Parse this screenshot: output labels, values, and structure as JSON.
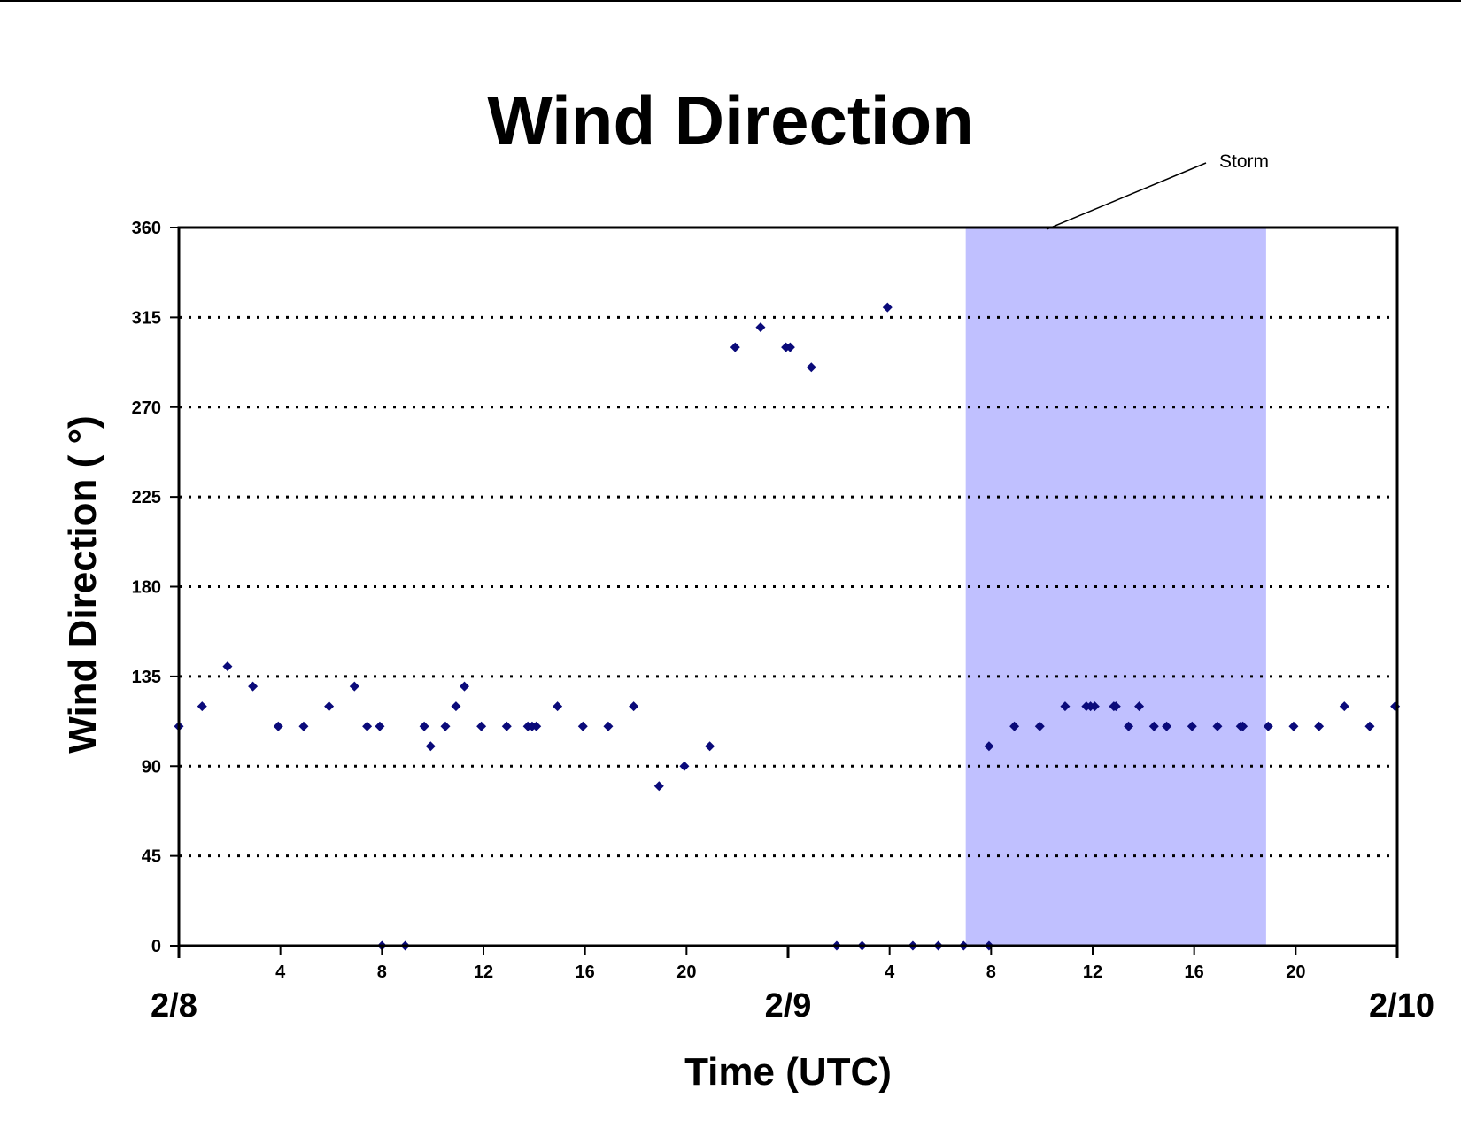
{
  "chart_data": {
    "type": "scatter",
    "title": "Wind Direction",
    "xlabel": "Time (UTC)",
    "ylabel": "Wind Direction ( °)",
    "ylim": [
      0,
      360
    ],
    "xlim": [
      "2/8 00:00",
      "2/10 00:00"
    ],
    "yticks": [
      0,
      45,
      90,
      135,
      180,
      225,
      270,
      315,
      360
    ],
    "xticks_hour": [
      {
        "h": 4,
        "label": "4"
      },
      {
        "h": 8,
        "label": "8"
      },
      {
        "h": 12,
        "label": "12"
      },
      {
        "h": 16,
        "label": "16"
      },
      {
        "h": 20,
        "label": "20"
      },
      {
        "h": 28,
        "label": "4"
      },
      {
        "h": 32,
        "label": "8"
      },
      {
        "h": 36,
        "label": "12"
      },
      {
        "h": 40,
        "label": "16"
      },
      {
        "h": 44,
        "label": "20"
      }
    ],
    "xticks_date": [
      {
        "h": 0,
        "label": "2/8"
      },
      {
        "h": 24,
        "label": "2/9"
      },
      {
        "h": 48,
        "label": "2/10"
      }
    ],
    "grid": "horizontal dotted",
    "marker_color": "#0a0a7a",
    "shade_color": "#c0c0ff",
    "shaded_region": {
      "label": "Storm",
      "from": "2/9 07:00",
      "to": "2/9 18:50"
    },
    "points": [
      {
        "x": "2/8 00:00",
        "y": 110
      },
      {
        "x": "2/8 00:55",
        "y": 120
      },
      {
        "x": "2/8 01:55",
        "y": 140
      },
      {
        "x": "2/8 02:55",
        "y": 130
      },
      {
        "x": "2/8 03:55",
        "y": 110
      },
      {
        "x": "2/8 04:55",
        "y": 110
      },
      {
        "x": "2/8 05:55",
        "y": 120
      },
      {
        "x": "2/8 06:55",
        "y": 130
      },
      {
        "x": "2/8 07:25",
        "y": 110
      },
      {
        "x": "2/8 07:55",
        "y": 110
      },
      {
        "x": "2/8 08:00",
        "y": 0
      },
      {
        "x": "2/8 08:55",
        "y": 0
      },
      {
        "x": "2/8 09:40",
        "y": 110
      },
      {
        "x": "2/8 09:55",
        "y": 100
      },
      {
        "x": "2/8 10:30",
        "y": 110
      },
      {
        "x": "2/8 10:55",
        "y": 120
      },
      {
        "x": "2/8 11:15",
        "y": 130
      },
      {
        "x": "2/8 11:55",
        "y": 110
      },
      {
        "x": "2/8 12:55",
        "y": 110
      },
      {
        "x": "2/8 13:45",
        "y": 110
      },
      {
        "x": "2/8 13:55",
        "y": 110
      },
      {
        "x": "2/8 14:05",
        "y": 110
      },
      {
        "x": "2/8 14:55",
        "y": 120
      },
      {
        "x": "2/8 15:55",
        "y": 110
      },
      {
        "x": "2/8 16:55",
        "y": 110
      },
      {
        "x": "2/8 17:55",
        "y": 120
      },
      {
        "x": "2/8 18:55",
        "y": 80
      },
      {
        "x": "2/8 19:55",
        "y": 90
      },
      {
        "x": "2/8 20:55",
        "y": 100
      },
      {
        "x": "2/8 21:55",
        "y": 300
      },
      {
        "x": "2/8 22:55",
        "y": 310
      },
      {
        "x": "2/8 23:55",
        "y": 300
      },
      {
        "x": "2/9 00:05",
        "y": 300
      },
      {
        "x": "2/9 00:55",
        "y": 290
      },
      {
        "x": "2/9 01:55",
        "y": 0
      },
      {
        "x": "2/9 02:55",
        "y": 0
      },
      {
        "x": "2/9 03:55",
        "y": 320
      },
      {
        "x": "2/9 04:55",
        "y": 0
      },
      {
        "x": "2/9 05:55",
        "y": 0
      },
      {
        "x": "2/9 06:55",
        "y": 0
      },
      {
        "x": "2/9 07:55",
        "y": 0
      },
      {
        "x": "2/9 07:55",
        "y": 100
      },
      {
        "x": "2/9 08:55",
        "y": 110
      },
      {
        "x": "2/9 09:55",
        "y": 110
      },
      {
        "x": "2/9 10:55",
        "y": 120
      },
      {
        "x": "2/9 11:45",
        "y": 120
      },
      {
        "x": "2/9 11:55",
        "y": 120
      },
      {
        "x": "2/9 12:05",
        "y": 120
      },
      {
        "x": "2/9 12:50",
        "y": 120
      },
      {
        "x": "2/9 12:55",
        "y": 120
      },
      {
        "x": "2/9 13:25",
        "y": 110
      },
      {
        "x": "2/9 13:50",
        "y": 120
      },
      {
        "x": "2/9 14:25",
        "y": 110
      },
      {
        "x": "2/9 14:55",
        "y": 110
      },
      {
        "x": "2/9 15:55",
        "y": 110
      },
      {
        "x": "2/9 16:55",
        "y": 110
      },
      {
        "x": "2/9 17:50",
        "y": 110
      },
      {
        "x": "2/9 17:55",
        "y": 110
      },
      {
        "x": "2/9 18:55",
        "y": 110
      },
      {
        "x": "2/9 19:55",
        "y": 110
      },
      {
        "x": "2/9 20:55",
        "y": 110
      },
      {
        "x": "2/9 21:55",
        "y": 120
      },
      {
        "x": "2/9 22:55",
        "y": 110
      },
      {
        "x": "2/9 23:55",
        "y": 120
      }
    ]
  }
}
